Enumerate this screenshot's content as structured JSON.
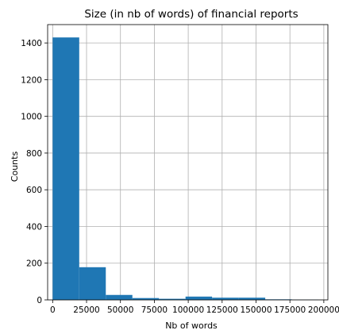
{
  "chart_data": {
    "type": "bar",
    "title": "Size (in nb of words) of financial reports",
    "xlabel": "Nb of words",
    "ylabel": "Counts",
    "xlim": [
      -3700,
      203000
    ],
    "ylim": [
      0,
      1500
    ],
    "grid": true,
    "bar_color": "#1f77b4",
    "xticks": [
      0,
      25000,
      50000,
      75000,
      100000,
      125000,
      150000,
      175000,
      200000
    ],
    "xtick_labels": [
      "0",
      "25000",
      "50000",
      "75000",
      "100000",
      "125000",
      "150000",
      "175000",
      "200000"
    ],
    "yticks": [
      0,
      200,
      400,
      600,
      800,
      1000,
      1200,
      1400
    ],
    "ytick_labels": [
      "0",
      "200",
      "400",
      "600",
      "800",
      "1000",
      "1200",
      "1400"
    ],
    "bins": [
      {
        "x0": 0,
        "x1": 19600,
        "count": 1430
      },
      {
        "x0": 19600,
        "x1": 39200,
        "count": 178
      },
      {
        "x0": 39200,
        "x1": 58800,
        "count": 27
      },
      {
        "x0": 58800,
        "x1": 78400,
        "count": 10
      },
      {
        "x0": 78400,
        "x1": 98000,
        "count": 6
      },
      {
        "x0": 98000,
        "x1": 117600,
        "count": 18
      },
      {
        "x0": 117600,
        "x1": 137200,
        "count": 12
      },
      {
        "x0": 137200,
        "x1": 156800,
        "count": 12
      },
      {
        "x0": 156800,
        "x1": 176400,
        "count": 3
      },
      {
        "x0": 176400,
        "x1": 196000,
        "count": 1
      }
    ]
  }
}
